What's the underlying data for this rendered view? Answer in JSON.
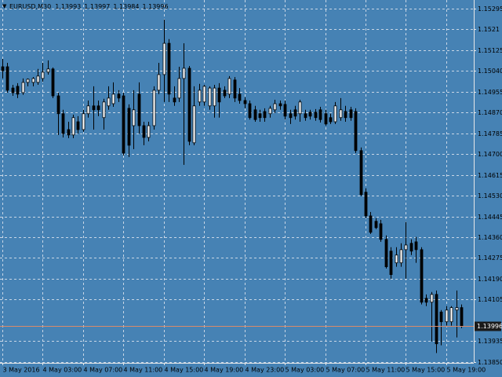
{
  "chart_data": {
    "type": "candlestick",
    "title": "EURUSD,M30",
    "header_ohlc": [
      1.13993,
      1.13997,
      1.13984,
      1.13996
    ],
    "last_price": 1.13996,
    "categories": [
      "3 May 2016",
      null,
      null,
      null,
      null,
      null,
      null,
      null,
      "4 May 03:00",
      null,
      null,
      null,
      null,
      null,
      null,
      null,
      "4 May 07:00",
      null,
      null,
      null,
      null,
      null,
      null,
      null,
      "4 May 11:00",
      null,
      null,
      null,
      null,
      null,
      null,
      null,
      "4 May 15:00",
      null,
      null,
      null,
      null,
      null,
      null,
      null,
      "4 May 19:00",
      null,
      null,
      null,
      null,
      null,
      null,
      null,
      "4 May 23:00",
      null,
      null,
      null,
      null,
      null,
      null,
      null,
      "5 May 03:00",
      null,
      null,
      null,
      null,
      null,
      null,
      null,
      "5 May 07:00",
      null,
      null,
      null,
      null,
      null,
      null,
      null,
      "5 May 11:00",
      null,
      null,
      null,
      null,
      null,
      null,
      null,
      "5 May 15:00",
      null,
      null,
      null,
      null,
      null,
      null,
      null,
      "5 May 19:00",
      null,
      null,
      null
    ],
    "open": [
      1.15057,
      1.15057,
      1.1497,
      1.14977,
      1.14951,
      1.14993,
      1.14993,
      1.14993,
      1.15009,
      1.15035,
      1.15048,
      1.14938,
      1.14865,
      1.148,
      1.14778,
      1.14832,
      1.148,
      1.14865,
      1.14897,
      1.14897,
      1.14849,
      1.14897,
      1.14906,
      1.14945,
      1.14938,
      1.14887,
      1.14816,
      1.14945,
      1.14816,
      1.14768,
      1.14816,
      1.14961,
      1.15025,
      1.15153,
      1.14929,
      1.14929,
      1.15009,
      1.15051,
      1.14746,
      1.14913,
      1.14913,
      1.14897,
      1.14897,
      1.1497,
      1.14961,
      1.14945,
      1.15003,
      1.14945,
      1.14919,
      1.14906,
      1.14881,
      1.14865,
      1.14874,
      1.14865,
      1.14881,
      1.14906,
      1.14903,
      1.14865,
      1.14881,
      1.14865,
      1.14865,
      1.14871,
      1.14871,
      1.14881,
      1.14865,
      1.14849,
      1.14832,
      1.14849,
      1.14874,
      1.14881,
      1.14874,
      1.14714,
      1.14544,
      1.14447,
      1.14425,
      1.14415,
      1.14351,
      1.14303,
      1.14255,
      1.14255,
      1.14309,
      1.14335,
      1.14341,
      1.14309,
      1.1411,
      1.14094,
      1.14126,
      1.14054,
      1.14014,
      1.14014,
      1.14062,
      1.14072
    ],
    "high": [
      1.15089,
      1.15073,
      1.14983,
      1.1499,
      1.15009,
      1.15009,
      1.15015,
      1.15048,
      1.15073,
      1.15083,
      1.15054,
      1.14951,
      1.14881,
      1.14832,
      1.14861,
      1.14855,
      1.14881,
      1.14919,
      1.14977,
      1.14919,
      1.14926,
      1.14977,
      1.14993,
      1.14961,
      1.14951,
      1.14903,
      1.14961,
      1.14993,
      1.14832,
      1.14832,
      1.14977,
      1.15073,
      1.1525,
      1.1517,
      1.14977,
      1.15057,
      1.15153,
      1.1506,
      1.14977,
      1.14987,
      1.14983,
      1.14977,
      1.14983,
      1.1499,
      1.14977,
      1.15019,
      1.15015,
      1.1497,
      1.14932,
      1.14919,
      1.14897,
      1.14881,
      1.14887,
      1.14897,
      1.14922,
      1.14919,
      1.14919,
      1.14881,
      1.14897,
      1.14922,
      1.14881,
      1.14881,
      1.14884,
      1.14893,
      1.14881,
      1.14865,
      1.14913,
      1.14929,
      1.14897,
      1.14893,
      1.14887,
      1.14727,
      1.1456,
      1.14463,
      1.14438,
      1.14431,
      1.14367,
      1.14319,
      1.14319,
      1.14335,
      1.14422,
      1.14351,
      1.14361,
      1.14319,
      1.14126,
      1.14136,
      1.14142,
      1.14062,
      1.14078,
      1.14078,
      1.14142,
      1.14085
    ],
    "low": [
      1.15009,
      1.14951,
      1.14938,
      1.14929,
      1.14942,
      1.14977,
      1.14977,
      1.14983,
      1.14996,
      1.15025,
      1.14929,
      1.14778,
      1.14768,
      1.14765,
      1.14765,
      1.14784,
      1.14791,
      1.14849,
      1.148,
      1.14855,
      1.148,
      1.14881,
      1.14893,
      1.14913,
      1.14694,
      1.14688,
      1.1472,
      1.14784,
      1.14736,
      1.14752,
      1.148,
      1.14945,
      1.14913,
      1.14913,
      1.14897,
      1.14913,
      1.14656,
      1.14736,
      1.14736,
      1.14897,
      1.14897,
      1.14881,
      1.14849,
      1.14849,
      1.14929,
      1.14929,
      1.14913,
      1.14906,
      1.14887,
      1.14841,
      1.14832,
      1.14832,
      1.14832,
      1.14849,
      1.14868,
      1.14881,
      1.14841,
      1.14823,
      1.14841,
      1.14832,
      1.14836,
      1.14841,
      1.14836,
      1.14829,
      1.14816,
      1.14823,
      1.14823,
      1.14836,
      1.14832,
      1.14836,
      1.14704,
      1.14528,
      1.14438,
      1.14373,
      1.14393,
      1.14341,
      1.14232,
      1.1419,
      1.14239,
      1.14239,
      1.1419,
      1.14287,
      1.14255,
      1.14085,
      1.14078,
      1.13934,
      1.13886,
      1.13918,
      1.13998,
      1.13998,
      1.1395,
      1.13988
    ],
    "close": [
      1.15041,
      1.14961,
      1.14951,
      1.14945,
      1.14993,
      1.15006,
      1.15009,
      1.15019,
      1.15035,
      1.15048,
      1.14938,
      1.14865,
      1.14784,
      1.14778,
      1.14849,
      1.148,
      1.14865,
      1.14897,
      1.14881,
      1.14881,
      1.14913,
      1.14929,
      1.14945,
      1.14929,
      1.14704,
      1.14736,
      1.14881,
      1.14816,
      1.14768,
      1.14816,
      1.14961,
      1.15025,
      1.15153,
      1.14945,
      1.14913,
      1.15009,
      1.15051,
      1.14752,
      1.14897,
      1.14961,
      1.14977,
      1.1497,
      1.1497,
      1.14913,
      1.14938,
      1.15009,
      1.14929,
      1.14919,
      1.14906,
      1.14849,
      1.14841,
      1.14849,
      1.14849,
      1.14887,
      1.14906,
      1.14897,
      1.14855,
      1.14849,
      1.14855,
      1.14913,
      1.14849,
      1.14855,
      1.14849,
      1.14841,
      1.14823,
      1.14832,
      1.14897,
      1.14881,
      1.14849,
      1.14849,
      1.14714,
      1.14534,
      1.14447,
      1.1438,
      1.14399,
      1.14351,
      1.14239,
      1.14207,
      1.14287,
      1.14309,
      1.14328,
      1.14303,
      1.14309,
      1.14094,
      1.14094,
      1.14126,
      1.13924,
      1.14014,
      1.14062,
      1.14072,
      1.14072,
      1.13996
    ],
    "ylim": [
      1.13846,
      1.1533
    ],
    "yticks": [
      1.15295,
      1.1521,
      1.15125,
      {
        "value": 1.1504,
        "label": "1.15040"
      },
      1.14955,
      {
        "value": 1.1487,
        "label": "1.14870"
      },
      1.14785,
      {
        "value": 1.147,
        "label": "1.14700"
      },
      1.14615,
      {
        "value": 1.1453,
        "label": "1.14530"
      },
      1.14445,
      {
        "value": 1.1436,
        "label": "1.14360"
      },
      1.14275,
      {
        "value": 1.1419,
        "label": "1.14190"
      },
      1.14105,
      1.13935,
      {
        "value": 1.1385,
        "label": "1.13850"
      }
    ],
    "grid": true,
    "background": "#4682b4",
    "grid_color": "#c8d6e6",
    "bull_color": "#ffffff",
    "bear_color": "#000000",
    "price_line_color": "#d98a6a"
  }
}
